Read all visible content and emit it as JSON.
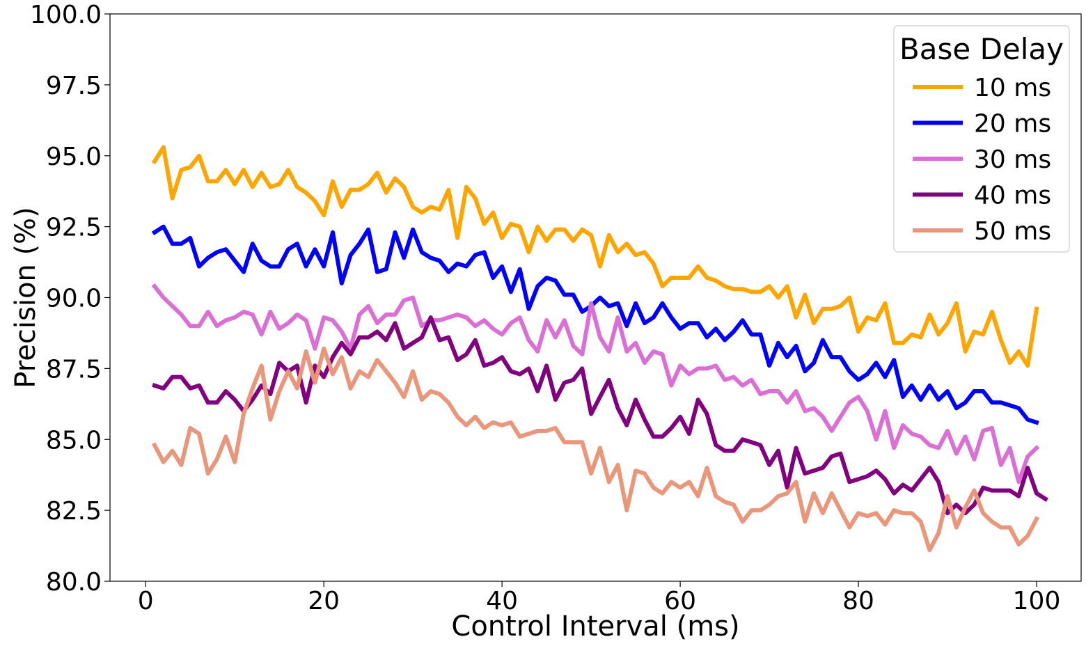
{
  "chart_data": {
    "type": "line",
    "xlabel": "Control Interval (ms)",
    "ylabel": "Precision (%)",
    "xlim": [
      -4,
      105
    ],
    "ylim": [
      80.0,
      100.0
    ],
    "xticks": [
      0,
      20,
      40,
      60,
      80,
      100
    ],
    "yticks": [
      80.0,
      82.5,
      85.0,
      87.5,
      90.0,
      92.5,
      95.0,
      97.5,
      100.0
    ],
    "ytick_labels": [
      "80.0",
      "82.5",
      "85.0",
      "87.5",
      "90.0",
      "92.5",
      "95.0",
      "97.5",
      "100.0"
    ],
    "xtick_labels": [
      "0",
      "20",
      "40",
      "60",
      "80",
      "100"
    ],
    "grid": false,
    "legend": {
      "title": "Base Delay",
      "placement": "top-right"
    },
    "series": [
      {
        "name": "10 ms",
        "color": "#ffa500",
        "values": [
          94.8,
          95.3,
          93.5,
          94.5,
          94.6,
          95.0,
          94.1,
          94.1,
          94.5,
          94.0,
          94.5,
          93.9,
          94.4,
          93.9,
          94.0,
          94.5,
          93.9,
          93.7,
          93.4,
          92.9,
          94.1,
          93.2,
          93.8,
          93.8,
          94.0,
          94.4,
          93.7,
          94.2,
          93.9,
          93.2,
          93.0,
          93.2,
          93.1,
          93.8,
          92.1,
          93.9,
          93.5,
          92.6,
          93.0,
          92.1,
          92.6,
          92.5,
          91.6,
          92.5,
          92.0,
          92.4,
          92.4,
          92.0,
          92.4,
          92.2,
          91.1,
          92.2,
          91.6,
          91.9,
          91.5,
          91.6,
          91.2,
          90.4,
          90.7,
          90.7,
          90.7,
          91.1,
          90.7,
          90.6,
          90.4,
          90.3,
          90.3,
          90.2,
          90.2,
          90.4,
          90.0,
          90.4,
          89.3,
          90.1,
          89.1,
          89.6,
          89.6,
          89.7,
          90.0,
          88.8,
          89.3,
          89.2,
          89.8,
          88.4,
          88.4,
          88.7,
          88.6,
          89.4,
          88.7,
          89.1,
          89.8,
          88.1,
          88.8,
          88.7,
          89.5,
          88.5,
          87.7,
          88.1,
          87.6,
          89.6
        ]
      },
      {
        "name": "20 ms",
        "color": "#0000ff",
        "values": [
          92.3,
          92.5,
          91.9,
          91.9,
          92.1,
          91.1,
          91.4,
          91.6,
          91.7,
          91.3,
          90.9,
          91.9,
          91.3,
          91.1,
          91.1,
          91.7,
          91.9,
          91.1,
          91.7,
          91.1,
          92.3,
          90.5,
          91.5,
          91.9,
          92.4,
          90.9,
          91.0,
          92.3,
          91.4,
          92.4,
          91.6,
          91.4,
          91.3,
          90.9,
          91.2,
          91.1,
          91.5,
          91.6,
          90.7,
          91.1,
          90.2,
          91.0,
          89.6,
          90.4,
          90.7,
          90.6,
          90.1,
          90.1,
          89.5,
          89.7,
          90.0,
          89.7,
          89.8,
          89.0,
          89.8,
          89.1,
          89.3,
          89.8,
          89.3,
          88.9,
          89.1,
          89.1,
          88.6,
          88.9,
          88.5,
          88.8,
          89.2,
          88.7,
          88.7,
          87.6,
          88.4,
          87.9,
          88.3,
          87.4,
          87.7,
          88.5,
          87.9,
          87.9,
          87.4,
          87.1,
          87.3,
          87.7,
          87.2,
          87.8,
          86.5,
          86.9,
          86.4,
          86.9,
          86.4,
          86.7,
          86.1,
          86.3,
          86.7,
          86.7,
          86.3,
          86.3,
          86.2,
          86.1,
          85.7,
          85.6
        ]
      },
      {
        "name": "30 ms",
        "color": "#da70d6",
        "values": [
          90.4,
          90.0,
          89.7,
          89.4,
          89.0,
          89.0,
          89.5,
          89.0,
          89.2,
          89.3,
          89.5,
          89.4,
          88.7,
          89.5,
          88.9,
          89.1,
          89.4,
          89.2,
          88.2,
          89.3,
          89.2,
          88.8,
          88.2,
          89.4,
          89.7,
          89.1,
          89.4,
          89.4,
          89.9,
          90.0,
          89.0,
          89.2,
          89.2,
          89.3,
          89.4,
          89.3,
          89.0,
          89.2,
          88.9,
          88.7,
          89.1,
          89.3,
          88.5,
          88.1,
          89.2,
          88.6,
          89.2,
          88.3,
          88.0,
          89.8,
          88.6,
          88.1,
          89.3,
          88.1,
          88.4,
          87.7,
          88.1,
          88.0,
          86.9,
          87.6,
          87.3,
          87.5,
          87.5,
          87.6,
          87.1,
          87.2,
          86.9,
          87.1,
          86.6,
          86.7,
          86.7,
          86.3,
          86.7,
          86.0,
          86.1,
          85.8,
          85.3,
          85.8,
          86.3,
          86.5,
          86.0,
          85.0,
          86.0,
          84.7,
          85.5,
          85.2,
          85.1,
          84.8,
          84.7,
          85.3,
          84.5,
          85.1,
          84.3,
          85.3,
          85.4,
          84.1,
          84.7,
          83.5,
          84.4,
          84.7
        ]
      },
      {
        "name": "40 ms",
        "color": "#800080",
        "values": [
          86.9,
          86.8,
          87.2,
          87.2,
          86.8,
          86.9,
          86.3,
          86.3,
          86.7,
          86.4,
          86.0,
          86.4,
          86.9,
          86.6,
          87.7,
          87.4,
          87.6,
          86.3,
          87.6,
          87.2,
          87.9,
          88.4,
          88.0,
          88.6,
          88.6,
          88.8,
          88.5,
          89.1,
          88.2,
          88.4,
          88.6,
          89.3,
          88.5,
          88.6,
          87.8,
          88.0,
          88.5,
          87.6,
          87.7,
          87.9,
          87.4,
          87.3,
          87.5,
          86.7,
          87.6,
          86.4,
          87.0,
          87.1,
          87.5,
          85.9,
          86.5,
          87.1,
          86.1,
          85.5,
          86.4,
          85.7,
          85.1,
          85.1,
          85.4,
          85.8,
          85.2,
          86.4,
          85.9,
          84.8,
          84.6,
          84.6,
          85.0,
          84.9,
          84.8,
          84.1,
          84.6,
          83.3,
          84.7,
          83.8,
          83.9,
          84.0,
          84.4,
          84.5,
          83.5,
          83.6,
          83.7,
          83.9,
          83.6,
          83.1,
          83.4,
          83.2,
          83.6,
          84.0,
          83.5,
          82.4,
          82.7,
          82.4,
          82.7,
          83.3,
          83.2,
          83.2,
          83.2,
          83.0,
          84.0,
          83.1,
          82.9
        ]
      },
      {
        "name": "50 ms",
        "color": "#e9967a",
        "values": [
          84.8,
          84.2,
          84.6,
          84.1,
          85.4,
          85.2,
          83.8,
          84.3,
          85.1,
          84.2,
          85.9,
          86.8,
          87.6,
          85.7,
          86.7,
          87.4,
          86.8,
          88.1,
          87.0,
          88.2,
          87.3,
          87.9,
          86.8,
          87.4,
          87.2,
          87.8,
          87.4,
          87.0,
          86.5,
          87.4,
          86.4,
          86.7,
          86.6,
          86.3,
          85.8,
          85.5,
          85.8,
          85.4,
          85.6,
          85.5,
          85.6,
          85.1,
          85.2,
          85.3,
          85.3,
          85.4,
          84.9,
          84.9,
          84.9,
          83.8,
          84.7,
          83.5,
          84.1,
          82.5,
          83.9,
          83.8,
          83.3,
          83.1,
          83.5,
          83.3,
          83.5,
          83.0,
          84.0,
          83.0,
          82.8,
          82.7,
          82.1,
          82.5,
          82.5,
          82.7,
          83.0,
          83.1,
          83.5,
          82.1,
          83.1,
          82.4,
          83.1,
          82.5,
          81.9,
          82.4,
          82.3,
          82.4,
          82.0,
          82.5,
          82.4,
          82.4,
          82.1,
          81.1,
          81.7,
          83.0,
          81.9,
          82.6,
          83.2,
          82.4,
          82.1,
          81.9,
          81.9,
          81.3,
          81.6,
          82.2
        ]
      }
    ]
  }
}
